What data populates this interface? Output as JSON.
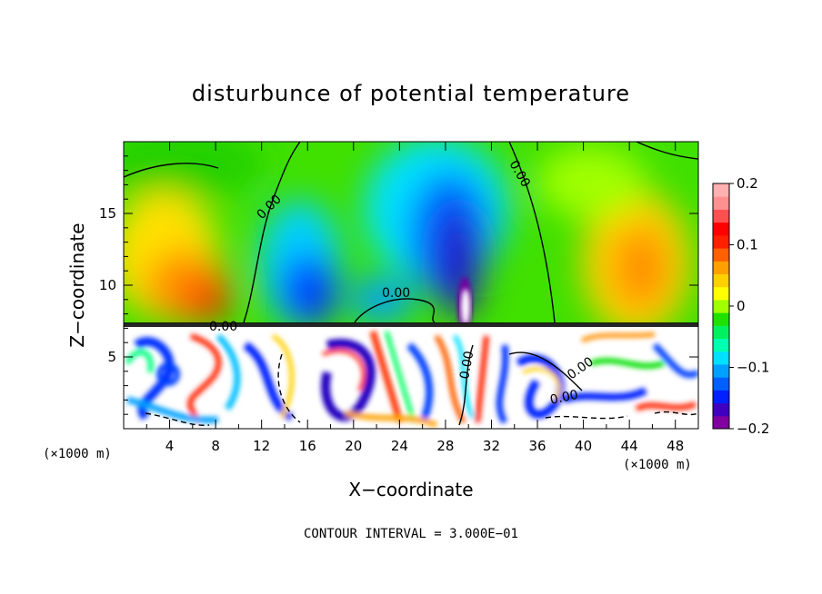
{
  "chart_data": {
    "type": "heatmap",
    "title": "disturbunce of potential temperature",
    "xlabel": "X−coordinate",
    "ylabel": "Z−coordinate",
    "x_unit": "(×1000 m)",
    "z_unit": "(×1000 m)",
    "xlim": [
      0,
      50
    ],
    "ylim": [
      0,
      20
    ],
    "x_ticks": [
      4,
      8,
      12,
      16,
      20,
      24,
      28,
      32,
      36,
      40,
      44,
      48
    ],
    "y_ticks": [
      5,
      10,
      15
    ],
    "colorbar": {
      "range": [
        -0.2,
        0.2
      ],
      "ticks": [
        0.2,
        0.1,
        0,
        -0.1,
        -0.2
      ],
      "tick_labels": [
        "0.2",
        "0.1",
        "0",
        "−0.1",
        "−0.2"
      ],
      "colors": [
        "#8000a0",
        "#4000c0",
        "#0020ff",
        "#0060ff",
        "#00a0ff",
        "#00e0ff",
        "#00ffb0",
        "#00f060",
        "#20e000",
        "#a0ff00",
        "#ffff00",
        "#ffd000",
        "#ffa000",
        "#ff6000",
        "#ff2000",
        "#ff0000",
        "#ff5050",
        "#ff9090",
        "#ffb0b0"
      ]
    },
    "contour_interval": "CONTOUR INTERVAL = 3.000E−01",
    "contour_labels": [
      "0.00",
      "0.00",
      "0.00",
      "0.00",
      "0.00",
      "0.00",
      "0.00"
    ],
    "upper_field": [
      {
        "x": 3,
        "z": 10,
        "value": 0.08
      },
      {
        "x": 7.5,
        "z": 9.5,
        "value": 0.15
      },
      {
        "x": 6,
        "z": 15,
        "value": 0.06
      },
      {
        "x": 10,
        "z": 18.5,
        "value": 0.01
      },
      {
        "x": 15,
        "z": 11,
        "value": -0.12
      },
      {
        "x": 16,
        "z": 9,
        "value": -0.16
      },
      {
        "x": 20,
        "z": 13,
        "value": -0.04
      },
      {
        "x": 24,
        "z": 11,
        "value": -0.09
      },
      {
        "x": 25,
        "z": 17,
        "value": -0.05
      },
      {
        "x": 29,
        "z": 14,
        "value": -0.15
      },
      {
        "x": 29.5,
        "z": 10,
        "value": -0.2
      },
      {
        "x": 34,
        "z": 13,
        "value": -0.04
      },
      {
        "x": 37,
        "z": 17,
        "value": 0.01
      },
      {
        "x": 43,
        "z": 11,
        "value": 0.12
      },
      {
        "x": 48,
        "z": 13,
        "value": 0.06
      }
    ]
  }
}
